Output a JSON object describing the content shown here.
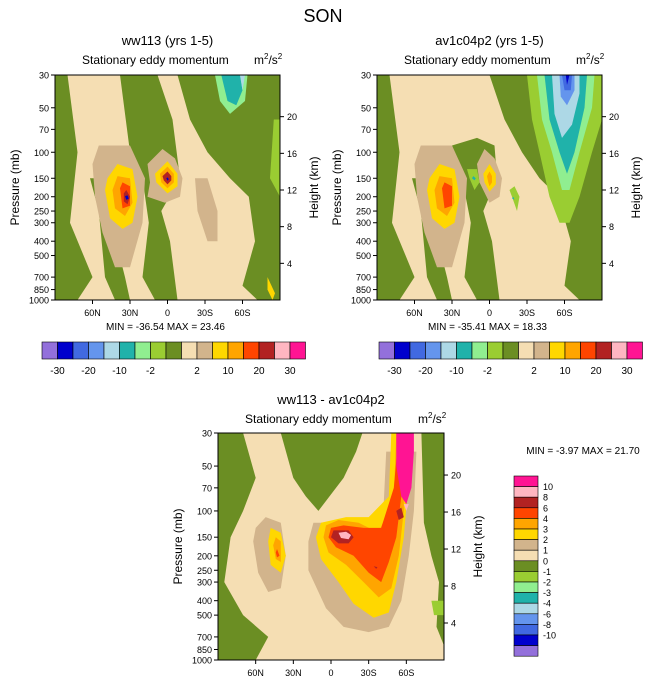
{
  "page_title": "SON",
  "chart_data": [
    {
      "type": "heatmap",
      "id": "p1",
      "title": "ww113 (yrs 1-5)",
      "subtitle": "Stationary eddy momentum",
      "units": "m²/s²",
      "units_base": "m",
      "units_mid": "2",
      "units_slash": "/s",
      "units_exp": "2",
      "xlabel": "",
      "ylabel": "Pressure (mb)",
      "ylabel2": "Height (km)",
      "x_ticks": [
        "60N",
        "30N",
        "0",
        "30S",
        "60S"
      ],
      "x_tick_values": [
        60,
        30,
        0,
        -30,
        -60
      ],
      "xlim": [
        90,
        -90
      ],
      "y_ticks": [
        "30",
        "50",
        "70",
        "100",
        "150",
        "200",
        "250",
        "300",
        "400",
        "500",
        "700",
        "850",
        "1000"
      ],
      "y_tick_values": [
        30,
        50,
        70,
        100,
        150,
        200,
        250,
        300,
        400,
        500,
        700,
        850,
        1000
      ],
      "ylim": [
        1000,
        30
      ],
      "height_ticks": [
        "20",
        "16",
        "12",
        "8",
        "4"
      ],
      "height_tick_values": [
        20,
        16,
        12,
        8,
        4
      ],
      "min_text": "MIN = -36.54   MAX = 23.46",
      "min": -36.54,
      "max": 23.46
    },
    {
      "type": "heatmap",
      "id": "p2",
      "title": "av1c04p2 (yrs 1-5)",
      "subtitle": "Stationary eddy momentum",
      "units": "m²/s²",
      "units_base": "m",
      "units_mid": "2",
      "units_slash": "/s",
      "units_exp": "2",
      "xlabel": "",
      "ylabel": "Pressure (mb)",
      "ylabel2": "Height (km)",
      "x_ticks": [
        "60N",
        "30N",
        "0",
        "30S",
        "60S"
      ],
      "x_tick_values": [
        60,
        30,
        0,
        -30,
        -60
      ],
      "xlim": [
        90,
        -90
      ],
      "y_ticks": [
        "30",
        "50",
        "70",
        "100",
        "150",
        "200",
        "250",
        "300",
        "400",
        "500",
        "700",
        "850",
        "1000"
      ],
      "y_tick_values": [
        30,
        50,
        70,
        100,
        150,
        200,
        250,
        300,
        400,
        500,
        700,
        850,
        1000
      ],
      "ylim": [
        1000,
        30
      ],
      "height_ticks": [
        "20",
        "16",
        "12",
        "8",
        "4"
      ],
      "height_tick_values": [
        20,
        16,
        12,
        8,
        4
      ],
      "min_text": "MIN = -35.41   MAX = 18.33",
      "min": -35.41,
      "max": 18.33
    },
    {
      "type": "heatmap",
      "id": "p3",
      "title": "ww113 - av1c04p2",
      "subtitle": "Stationary eddy momentum",
      "units": "m²/s²",
      "units_base": "m",
      "units_mid": "2",
      "units_slash": "/s",
      "units_exp": "2",
      "xlabel": "",
      "ylabel": "Pressure (mb)",
      "ylabel2": "Height (km)",
      "x_ticks": [
        "60N",
        "30N",
        "0",
        "30S",
        "60S"
      ],
      "x_tick_values": [
        60,
        30,
        0,
        -30,
        -60
      ],
      "xlim": [
        90,
        -90
      ],
      "y_ticks": [
        "30",
        "50",
        "70",
        "100",
        "150",
        "200",
        "250",
        "300",
        "400",
        "500",
        "700",
        "850",
        "1000"
      ],
      "y_tick_values": [
        30,
        50,
        70,
        100,
        150,
        200,
        250,
        300,
        400,
        500,
        700,
        850,
        1000
      ],
      "ylim": [
        1000,
        30
      ],
      "height_ticks": [
        "20",
        "16",
        "12",
        "8",
        "4"
      ],
      "height_tick_values": [
        20,
        16,
        12,
        8,
        4
      ],
      "min_text": "MIN =  -3.97   MAX = 21.70",
      "min": -3.97,
      "max": 21.7
    }
  ],
  "colorbar_top": {
    "colors": [
      "#9370db",
      "#0000cd",
      "#4169e1",
      "#6495ed",
      "#add8e6",
      "#20b2aa",
      "#90ee90",
      "#9acd32",
      "#6b8e23",
      "#f5deb3",
      "#d2b48c",
      "#ffd700",
      "#ffa500",
      "#ff4500",
      "#b22222",
      "#ffb6c1",
      "#ff1493"
    ],
    "labels": [
      "-30",
      "-20",
      "-10",
      "-2",
      "2",
      "10",
      "20",
      "30"
    ]
  },
  "colorbar_diff": {
    "colors": [
      "#ff1493",
      "#ffb6c1",
      "#b22222",
      "#ff4500",
      "#ffa500",
      "#ffd700",
      "#d2b48c",
      "#f5deb3",
      "#6b8e23",
      "#9acd32",
      "#90ee90",
      "#20b2aa",
      "#add8e6",
      "#6495ed",
      "#4169e1",
      "#0000cd",
      "#9370db"
    ],
    "labels": [
      "10",
      "8",
      "6",
      "4",
      "3",
      "2",
      "1",
      "0",
      "-1",
      "-2",
      "-3",
      "-4",
      "-6",
      "-8",
      "-10"
    ]
  },
  "palette": {
    "bg": "#f5deb3",
    "neg1": "#6b8e23",
    "neg2": "#9acd32",
    "neg3": "#90ee90",
    "neg4": "#20b2aa",
    "neg5": "#add8e6",
    "neg6": "#6495ed",
    "neg7": "#4169e1",
    "neg8": "#0000cd",
    "pos1": "#d2b48c",
    "pos2": "#ffd700",
    "pos3": "#ffa500",
    "pos4": "#ff4500",
    "pos5": "#b22222",
    "pos6": "#ffb6c1",
    "pos7": "#ff1493"
  }
}
